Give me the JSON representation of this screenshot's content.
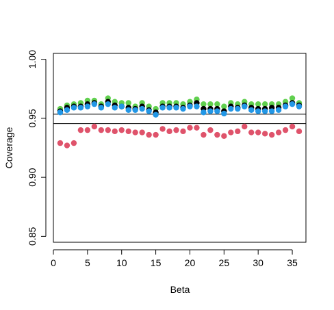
{
  "chart_data": {
    "type": "scatter",
    "title": "",
    "xlabel": "Beta",
    "ylabel": "Coverage",
    "xlim": [
      0,
      37
    ],
    "ylim": [
      0.845,
      1.005
    ],
    "x_ticks": [
      0,
      5,
      10,
      15,
      20,
      25,
      30,
      35
    ],
    "y_ticks": [
      0.85,
      0.9,
      0.95,
      1.0
    ],
    "x_tick_labels": [
      "0",
      "5",
      "10",
      "15",
      "20",
      "25",
      "30",
      "35"
    ],
    "y_tick_labels": [
      "0.85",
      "0.90",
      "0.95",
      "1.00"
    ],
    "grid": false,
    "reference_lines": [
      0.9535,
      0.9455
    ],
    "x": [
      1,
      2,
      3,
      4,
      5,
      6,
      7,
      8,
      9,
      10,
      11,
      12,
      13,
      14,
      15,
      16,
      17,
      18,
      19,
      20,
      21,
      22,
      23,
      24,
      25,
      26,
      27,
      28,
      29,
      30,
      31,
      32,
      33,
      34,
      35,
      36
    ],
    "series": [
      {
        "color": "#61D04F",
        "values": [
          0.958,
          0.961,
          0.962,
          0.963,
          0.965,
          0.965,
          0.962,
          0.967,
          0.964,
          0.963,
          0.963,
          0.96,
          0.963,
          0.96,
          0.958,
          0.963,
          0.963,
          0.963,
          0.962,
          0.964,
          0.966,
          0.962,
          0.962,
          0.962,
          0.96,
          0.963,
          0.962,
          0.964,
          0.962,
          0.962,
          0.962,
          0.962,
          0.962,
          0.964,
          0.967,
          0.963
        ]
      },
      {
        "color": "#000000",
        "values": [
          0.956,
          0.959,
          0.96,
          0.96,
          0.962,
          0.963,
          0.96,
          0.964,
          0.961,
          0.96,
          0.959,
          0.958,
          0.96,
          0.957,
          0.955,
          0.96,
          0.96,
          0.96,
          0.959,
          0.961,
          0.963,
          0.958,
          0.958,
          0.958,
          0.956,
          0.96,
          0.959,
          0.961,
          0.959,
          0.958,
          0.958,
          0.959,
          0.959,
          0.961,
          0.963,
          0.961
        ]
      },
      {
        "color": "#2297E6",
        "values": [
          0.955,
          0.957,
          0.959,
          0.959,
          0.96,
          0.962,
          0.959,
          0.962,
          0.959,
          0.96,
          0.957,
          0.957,
          0.958,
          0.956,
          0.953,
          0.959,
          0.959,
          0.959,
          0.958,
          0.96,
          0.96,
          0.955,
          0.956,
          0.956,
          0.954,
          0.958,
          0.958,
          0.96,
          0.957,
          0.956,
          0.956,
          0.956,
          0.957,
          0.96,
          0.962,
          0.96
        ]
      },
      {
        "color": "#DF536B",
        "values": [
          0.929,
          0.927,
          0.929,
          0.94,
          0.94,
          0.943,
          0.94,
          0.94,
          0.939,
          0.94,
          0.939,
          0.938,
          0.938,
          0.936,
          0.936,
          0.941,
          0.939,
          0.94,
          0.939,
          0.942,
          0.942,
          0.936,
          0.94,
          0.936,
          0.935,
          0.938,
          0.939,
          0.943,
          0.938,
          0.938,
          0.937,
          0.936,
          0.938,
          0.94,
          0.943,
          0.939
        ]
      }
    ]
  }
}
